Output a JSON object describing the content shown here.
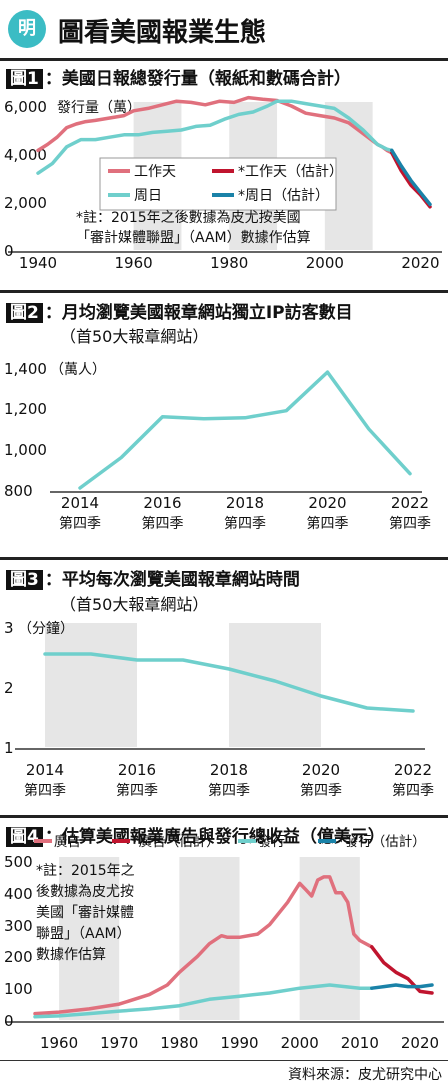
{
  "header": {
    "logo": "明",
    "title": "圖看美國報業生態"
  },
  "panels": [
    {
      "num": "圖1",
      "title": "：美國日報總發行量（報紙和數碼合計）",
      "subtitle": ""
    },
    {
      "num": "圖2",
      "title": "：月均瀏覽美國報章網站獨立IP訪客數目",
      "subtitle": "（首50大報章網站）"
    },
    {
      "num": "圖3",
      "title": "：平均每次瀏覽美國報章網站時間",
      "subtitle": "（首50大報章網站）"
    },
    {
      "num": "圖4",
      "title": "：估算美國報業廣告與發行總收益（億美元）",
      "subtitle": ""
    }
  ],
  "source": "資料來源：皮尤研究中心",
  "colors": {
    "red": "#e0707d",
    "darkred": "#c0142e",
    "teal": "#6fcfcc",
    "darkteal": "#1a82a8",
    "shade": "#e6e6e6"
  },
  "chart_data": [
    {
      "type": "line",
      "title": "美國日報總發行量（報紙和數碼合計）",
      "ylabel": "發行量（萬）",
      "yticks": [
        "6,000",
        "4,000",
        "2,000",
        "0"
      ],
      "xticks": [
        "1940",
        "1960",
        "1980",
        "2000",
        "2020"
      ],
      "xlim": [
        1940,
        2022
      ],
      "ylim": [
        0,
        6000
      ],
      "shaded_ranges": [
        [
          1960,
          1970
        ],
        [
          1980,
          1990
        ],
        [
          2000,
          2010
        ]
      ],
      "series": [
        {
          "name": "工作天",
          "color": "#e0707d",
          "x": [
            1940,
            1942,
            1944,
            1946,
            1948,
            1950,
            1952,
            1955,
            1958,
            1960,
            1963,
            1966,
            1969,
            1972,
            1975,
            1978,
            1981,
            1984,
            1987,
            1990,
            1993,
            1996,
            1999,
            2002,
            2005,
            2008,
            2011,
            2012,
            2013,
            2014
          ],
          "y": [
            4150,
            4400,
            4700,
            5100,
            5250,
            5350,
            5400,
            5500,
            5600,
            5800,
            5900,
            6050,
            6200,
            6150,
            6050,
            6200,
            6150,
            6350,
            6280,
            6230,
            6000,
            5700,
            5600,
            5500,
            5300,
            4850,
            4400,
            4300,
            4150,
            4050
          ]
        },
        {
          "name": "*工作天（估計）",
          "color": "#c0142e",
          "x": [
            2014,
            2016,
            2018,
            2020,
            2022
          ],
          "y": [
            4050,
            3300,
            2700,
            2300,
            1800
          ]
        },
        {
          "name": "周日",
          "color": "#6fcfcc",
          "x": [
            1940,
            1943,
            1946,
            1949,
            1952,
            1955,
            1958,
            1961,
            1964,
            1967,
            1970,
            1973,
            1976,
            1979,
            1982,
            1985,
            1988,
            1990,
            1993,
            1996,
            1999,
            2002,
            2005,
            2008,
            2011,
            2012,
            2013,
            2014
          ],
          "y": [
            3200,
            3600,
            4300,
            4600,
            4600,
            4700,
            4800,
            4800,
            4900,
            4950,
            5000,
            5150,
            5200,
            5450,
            5650,
            5750,
            6000,
            6200,
            6200,
            6100,
            6000,
            5900,
            5500,
            5000,
            4400,
            4300,
            4200,
            4150
          ]
        },
        {
          "name": "*周日（估計）",
          "color": "#1a82a8",
          "x": [
            2014,
            2016,
            2018,
            2020,
            2022
          ],
          "y": [
            4150,
            3500,
            2900,
            2400,
            1900
          ]
        }
      ],
      "annotation": "*註：2015年之後數據為皮尤按美國「審計媒體聯盟」（AAM）數據作估算"
    },
    {
      "type": "line",
      "title": "月均瀏覽美國報章網站獨立IP訪客數目",
      "subtitle": "（首50大報章網站）",
      "ylabel": "（萬人）",
      "yticks": [
        "1,400",
        "1,200",
        "1,000",
        "800"
      ],
      "xticks": [
        "2014\n第四季",
        "2016\n第四季",
        "2018\n第四季",
        "2020\n第四季",
        "2022\n第四季"
      ],
      "xlim": [
        2014,
        2022
      ],
      "ylim": [
        800,
        1400
      ],
      "series": [
        {
          "name": "",
          "color": "#6fcfcc",
          "x": [
            2014,
            2015,
            2016,
            2017,
            2018,
            2019,
            2020,
            2021,
            2022
          ],
          "y": [
            810,
            960,
            1160,
            1150,
            1155,
            1190,
            1380,
            1100,
            880
          ]
        }
      ]
    },
    {
      "type": "line",
      "title": "平均每次瀏覽美國報章網站時間",
      "subtitle": "（首50大報章網站）",
      "ylabel": "（分鐘）",
      "yticks": [
        "3",
        "2",
        "1"
      ],
      "xticks": [
        "2014\n第四季",
        "2016\n第四季",
        "2018\n第四季",
        "2020\n第四季",
        "2022\n第四季"
      ],
      "xlim": [
        2014,
        2022
      ],
      "ylim": [
        1,
        3
      ],
      "shaded_ranges": [
        [
          2014,
          2016
        ],
        [
          2018,
          2020
        ]
      ],
      "series": [
        {
          "name": "",
          "color": "#6fcfcc",
          "x": [
            2014,
            2015,
            2016,
            2017,
            2018,
            2019,
            2020,
            2021,
            2022
          ],
          "y": [
            2.55,
            2.55,
            2.45,
            2.45,
            2.3,
            2.1,
            1.85,
            1.65,
            1.6
          ]
        }
      ]
    },
    {
      "type": "line",
      "title": "估算美國報業廣告與發行總收益",
      "ylabel": "（億美元）",
      "yticks": [
        "500",
        "400",
        "300",
        "200",
        "100",
        "0"
      ],
      "xticks": [
        "1960",
        "1970",
        "1980",
        "1990",
        "2000",
        "2010",
        "2020"
      ],
      "xlim": [
        1956,
        2022
      ],
      "ylim": [
        0,
        500
      ],
      "shaded_ranges": [
        [
          1960,
          1970
        ],
        [
          1980,
          1990
        ],
        [
          2000,
          2010
        ]
      ],
      "series": [
        {
          "name": "廣告",
          "color": "#e0707d",
          "x": [
            1956,
            1960,
            1965,
            1970,
            1975,
            1978,
            1980,
            1983,
            1985,
            1987,
            1988,
            1990,
            1993,
            1995,
            1998,
            2000,
            2001,
            2002,
            2003,
            2004,
            2005,
            2006,
            2007,
            2008,
            2009,
            2010,
            2012
          ],
          "y": [
            20,
            25,
            35,
            50,
            80,
            110,
            150,
            200,
            240,
            265,
            260,
            260,
            270,
            300,
            370,
            430,
            410,
            390,
            440,
            450,
            450,
            400,
            400,
            370,
            270,
            250,
            230
          ]
        },
        {
          "name": "*廣告（估計）",
          "color": "#c0142e",
          "x": [
            2012,
            2014,
            2016,
            2018,
            2020,
            2022
          ],
          "y": [
            230,
            180,
            150,
            130,
            90,
            85
          ]
        },
        {
          "name": "發行",
          "color": "#6fcfcc",
          "x": [
            1956,
            1960,
            1965,
            1970,
            1975,
            1980,
            1985,
            1990,
            1995,
            2000,
            2005,
            2010,
            2012
          ],
          "y": [
            10,
            13,
            20,
            28,
            35,
            45,
            65,
            75,
            85,
            100,
            110,
            100,
            100
          ]
        },
        {
          "name": "*發行（估計）",
          "color": "#1a82a8",
          "x": [
            2012,
            2014,
            2016,
            2018,
            2020,
            2022
          ],
          "y": [
            100,
            105,
            110,
            105,
            105,
            110
          ]
        }
      ],
      "annotation": "*註：2015年之後數據為皮尤按美國「審計媒體聯盟」（AAM）數據作估算"
    }
  ]
}
